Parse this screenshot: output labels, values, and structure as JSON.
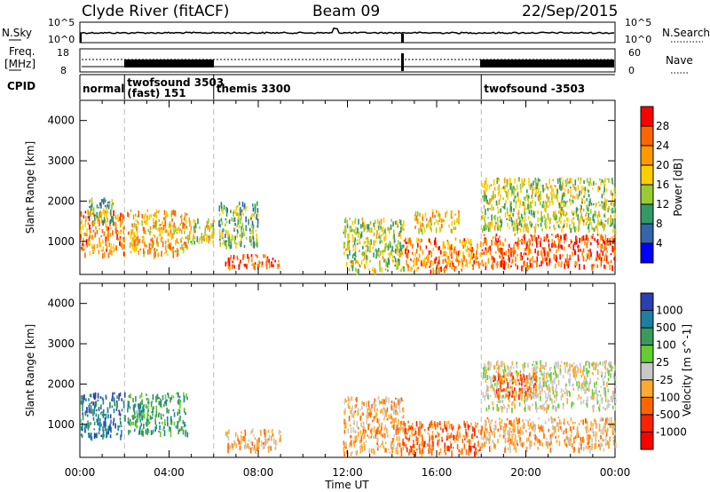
{
  "header": {
    "station": "Clyde River (fitACF)",
    "beam": "Beam 09",
    "date": "22/Sep/2015"
  },
  "summary_panels": {
    "noise": {
      "left_label": "N.Sky",
      "right_label": "N.Search",
      "left_ticks": [
        "10^5",
        "10^0"
      ],
      "right_ticks": [
        "10^5",
        "10^0"
      ]
    },
    "freq": {
      "left_label_line1": "Freq.",
      "left_label_line2": "[MHz]",
      "right_label": "Nave",
      "left_ticks": [
        "18",
        "8"
      ],
      "right_ticks": [
        "60",
        "0"
      ]
    },
    "cpid": {
      "label": "CPID",
      "modes": [
        {
          "start_hour": 0.0,
          "text": "normal"
        },
        {
          "start_hour": 2.0,
          "text": "twofsound 3503"
        },
        {
          "start_hour": 2.0,
          "text": "(fast) 151"
        },
        {
          "start_hour": 6.0,
          "text": "themis 3300"
        },
        {
          "start_hour": 18.0,
          "text": "twofsound -3503"
        }
      ]
    }
  },
  "chart_data": [
    {
      "type": "heatmap",
      "name": "power",
      "xlabel": "",
      "ylabel": "Slant Range [km]",
      "xlim": [
        0,
        24
      ],
      "ylim": [
        180,
        4500
      ],
      "y_ticks": [
        "1000",
        "2000",
        "3000",
        "4000"
      ],
      "colorbar": {
        "label": "Power [dB]",
        "ticks": [
          "28",
          "24",
          "20",
          "16",
          "12",
          "8",
          "4"
        ],
        "colors": [
          "#ff0000",
          "#ff6600",
          "#ff9900",
          "#ffcc00",
          "#99cc33",
          "#339966",
          "#3366aa",
          "#0000ff"
        ]
      },
      "echo_regions": [
        {
          "x": [
            0.0,
            2.0
          ],
          "y": [
            700,
            1800
          ],
          "level": 22
        },
        {
          "x": [
            0.3,
            1.5
          ],
          "y": [
            1500,
            2100
          ],
          "level": 10
        },
        {
          "x": [
            2.1,
            4.8
          ],
          "y": [
            700,
            1800
          ],
          "level": 20
        },
        {
          "x": [
            4.8,
            6.0
          ],
          "y": [
            1000,
            1600
          ],
          "level": 16
        },
        {
          "x": [
            6.2,
            8.0
          ],
          "y": [
            900,
            2000
          ],
          "level": 12
        },
        {
          "x": [
            6.5,
            9.0
          ],
          "y": [
            400,
            700
          ],
          "level": 26
        },
        {
          "x": [
            11.8,
            14.5
          ],
          "y": [
            300,
            1600
          ],
          "level": 14
        },
        {
          "x": [
            14.5,
            18.0
          ],
          "y": [
            300,
            1100
          ],
          "level": 22
        },
        {
          "x": [
            15.0,
            17.0
          ],
          "y": [
            1300,
            1800
          ],
          "level": 18
        },
        {
          "x": [
            18.0,
            24.0
          ],
          "y": [
            400,
            1200
          ],
          "level": 26
        },
        {
          "x": [
            18.0,
            24.0
          ],
          "y": [
            1300,
            2600
          ],
          "level": 14
        }
      ]
    },
    {
      "type": "heatmap",
      "name": "velocity",
      "xlabel": "Time UT",
      "ylabel": "Slant Range [km]",
      "xlim": [
        0,
        24
      ],
      "ylim": [
        180,
        4500
      ],
      "x_ticks": [
        "00:00",
        "04:00",
        "08:00",
        "12:00",
        "16:00",
        "20:00",
        "00:00"
      ],
      "y_ticks": [
        "1000",
        "2000",
        "3000",
        "4000"
      ],
      "colorbar": {
        "label": "Velocity [m s^-1]",
        "ticks": [
          "1000",
          "500",
          "100",
          "25",
          "-25",
          "-100",
          "-500",
          "-1000"
        ],
        "colors": [
          "#2b3fb0",
          "#1f7fa0",
          "#3a9a5a",
          "#66cc33",
          "#c8c8c8",
          "#ffaa33",
          "#ff6600",
          "#ff2200",
          "#ff0000"
        ]
      },
      "echo_regions": [
        {
          "x": [
            0.0,
            2.0
          ],
          "y": [
            700,
            1800
          ],
          "velocity": 500
        },
        {
          "x": [
            2.1,
            4.8
          ],
          "y": [
            800,
            1800
          ],
          "velocity": 100
        },
        {
          "x": [
            6.5,
            9.0
          ],
          "y": [
            400,
            900
          ],
          "velocity": -100
        },
        {
          "x": [
            11.8,
            14.5
          ],
          "y": [
            300,
            1700
          ],
          "velocity": -100
        },
        {
          "x": [
            14.5,
            18.0
          ],
          "y": [
            300,
            1100
          ],
          "velocity": -500
        },
        {
          "x": [
            18.0,
            24.0
          ],
          "y": [
            1400,
            2600
          ],
          "velocity": 0
        },
        {
          "x": [
            18.5,
            20.5
          ],
          "y": [
            1700,
            2300
          ],
          "velocity": -500
        },
        {
          "x": [
            18.0,
            24.0
          ],
          "y": [
            400,
            1200
          ],
          "velocity": -100
        }
      ]
    }
  ]
}
